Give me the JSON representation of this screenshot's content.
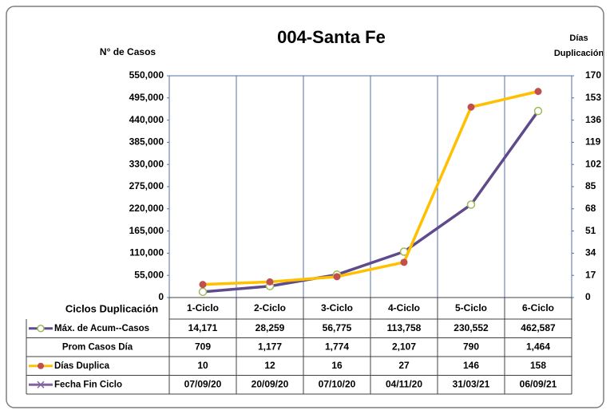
{
  "chart_data": {
    "type": "line",
    "title": "004-Santa Fe",
    "y_label": "N° de Casos",
    "y2_label": [
      "Días",
      "Duplicación"
    ],
    "table_header": "Ciclos Duplicación",
    "categories": [
      "1-Ciclo",
      "2-Ciclo",
      "3-Ciclo",
      "4-Ciclo",
      "5-Ciclo",
      "6-Ciclo"
    ],
    "series": [
      {
        "name": "Máx. de Acum--Casos",
        "color": "#5f4b8b",
        "marker_color": "#9bbb59",
        "marker": "open-circle",
        "values": [
          14171,
          28259,
          56775,
          113758,
          230552,
          462587
        ],
        "value_labels": [
          "14,171",
          "28,259",
          "56,775",
          "113,758",
          "230,552",
          "462,587"
        ]
      },
      {
        "name": "Prom Casos Día",
        "values": [
          709,
          1177,
          1774,
          2107,
          790,
          1464
        ],
        "value_labels": [
          "709",
          "1,177",
          "1,774",
          "2,107",
          "790",
          "1,464"
        ]
      },
      {
        "name": "Días Duplica",
        "color": "#ffc000",
        "marker_color": "#c0504d",
        "marker": "circle",
        "axis": "y2",
        "values": [
          10,
          12,
          16,
          27,
          146,
          158
        ]
      },
      {
        "name": "Fecha Fin Ciclo",
        "color": "#8064a2",
        "marker": "x",
        "values": [
          "07/09/20",
          "20/09/20",
          "07/10/20",
          "04/11/20",
          "31/03/21",
          "06/09/21"
        ]
      }
    ],
    "ylim": [
      0,
      550000
    ],
    "yticks": [
      {
        "value": 0,
        "label": "0"
      },
      {
        "value": 55000,
        "label": "55,000"
      },
      {
        "value": 110000,
        "label": "110,000"
      },
      {
        "value": 165000,
        "label": "165,000"
      },
      {
        "value": 220000,
        "label": "220,000"
      },
      {
        "value": 275000,
        "label": "275,000"
      },
      {
        "value": 330000,
        "label": "330,000"
      },
      {
        "value": 385000,
        "label": "385,000"
      },
      {
        "value": 440000,
        "label": "440,000"
      },
      {
        "value": 495000,
        "label": "495,000"
      },
      {
        "value": 550000,
        "label": "550,000"
      }
    ],
    "y2lim": [
      0,
      170
    ],
    "y2ticks": [
      0,
      17,
      34,
      51,
      68,
      85,
      102,
      119,
      136,
      153,
      170
    ]
  }
}
